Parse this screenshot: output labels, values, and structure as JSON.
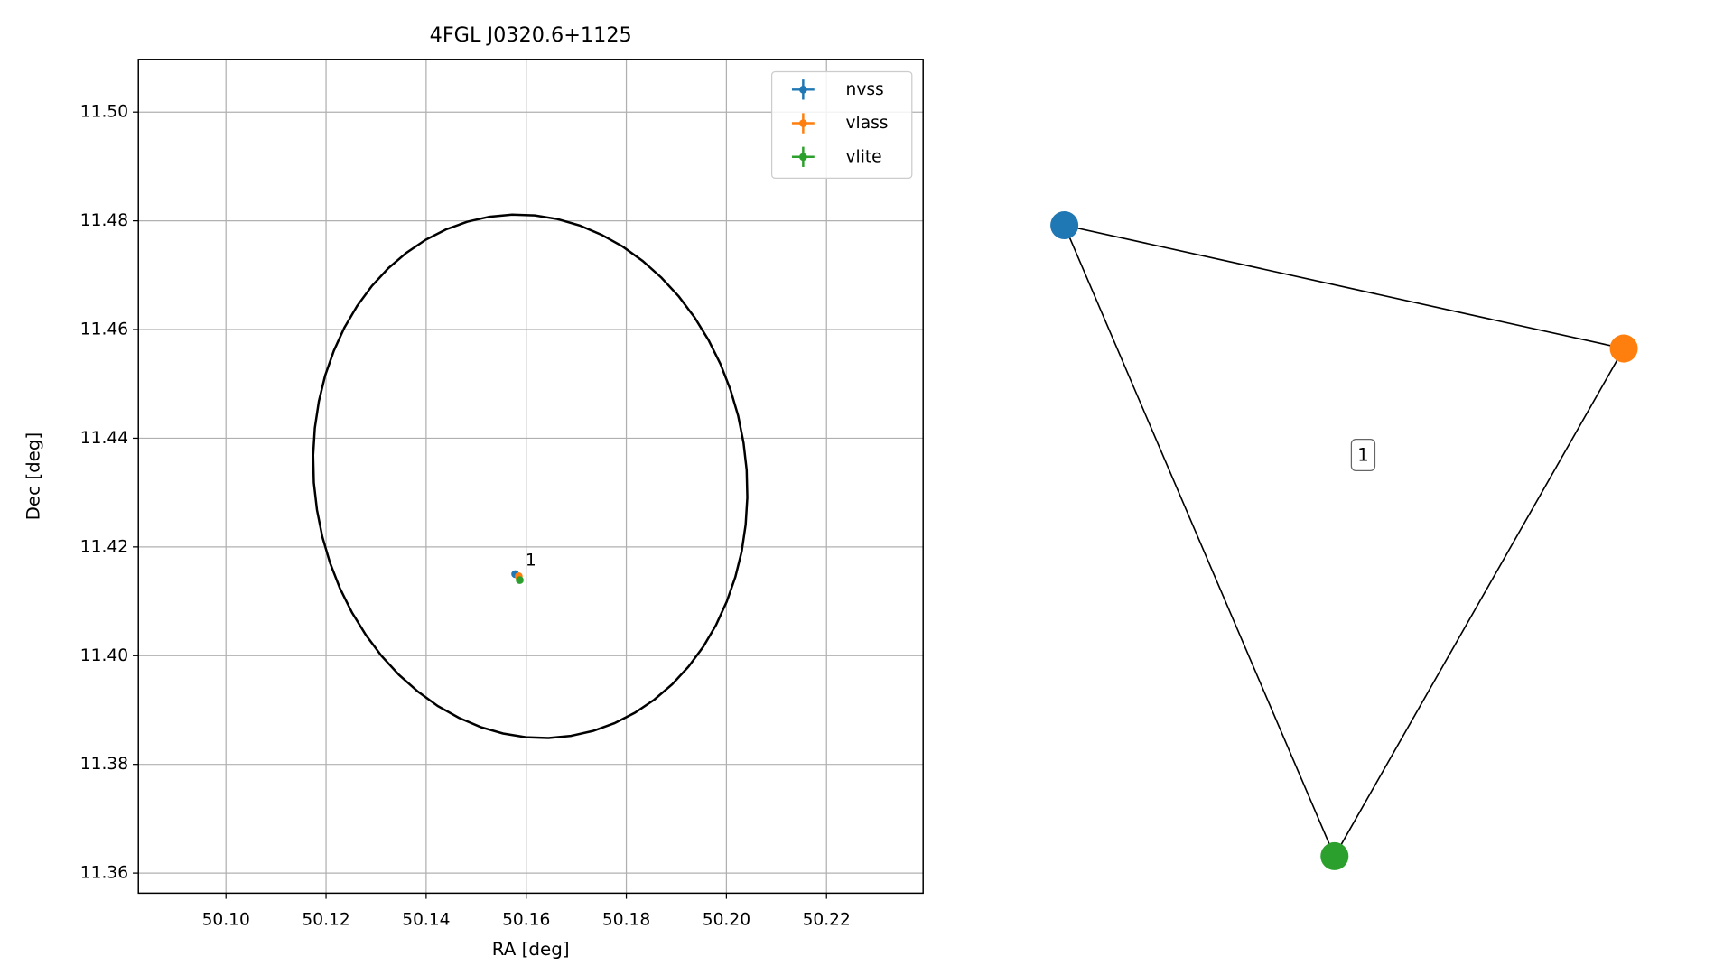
{
  "chart_data": [
    {
      "type": "scatter",
      "title": "4FGL J0320.6+1125",
      "x_label": "RA [deg]",
      "y_label": "Dec [deg]",
      "series": [
        {
          "name": "nvss",
          "color": "#1f77b4",
          "x": [
            50.1578
          ],
          "values": [
            11.415
          ]
        },
        {
          "name": "vlass",
          "color": "#ff7f0e",
          "x": [
            50.1585
          ],
          "values": [
            11.4146
          ]
        },
        {
          "name": "vlite",
          "color": "#2ca02c",
          "x": [
            50.1587
          ],
          "values": [
            11.4139
          ]
        }
      ],
      "annotation": "1",
      "ellipse": {
        "ra": 50.1608,
        "dec": 11.433,
        "semi_major": 0.0485,
        "semi_minor": 0.043,
        "angle": 15,
        "color": "#000000"
      },
      "xlim": [
        50.0825,
        50.2393
      ],
      "ylim": [
        11.3563,
        11.5097
      ],
      "xticks": [
        {
          "value": 50.1,
          "label": "50.10"
        },
        50.12,
        50.14,
        50.16,
        50.18,
        {
          "value": 50.2,
          "label": "50.20"
        },
        50.22
      ],
      "yticks": [
        11.36,
        11.38,
        {
          "value": 11.4,
          "label": "11.40"
        },
        11.42,
        11.44,
        11.46,
        11.48,
        {
          "value": 11.5,
          "label": "11.50"
        }
      ],
      "grid": true,
      "legend": "upper right"
    },
    {
      "type": "network",
      "nodes": [
        {
          "color": "#1f77b4"
        },
        {
          "color": "#ff7f0e"
        },
        {
          "color": "#2ca02c"
        }
      ],
      "edges": [
        [
          0,
          1
        ],
        [
          0,
          2
        ],
        [
          1,
          2
        ]
      ],
      "label": "1"
    }
  ]
}
